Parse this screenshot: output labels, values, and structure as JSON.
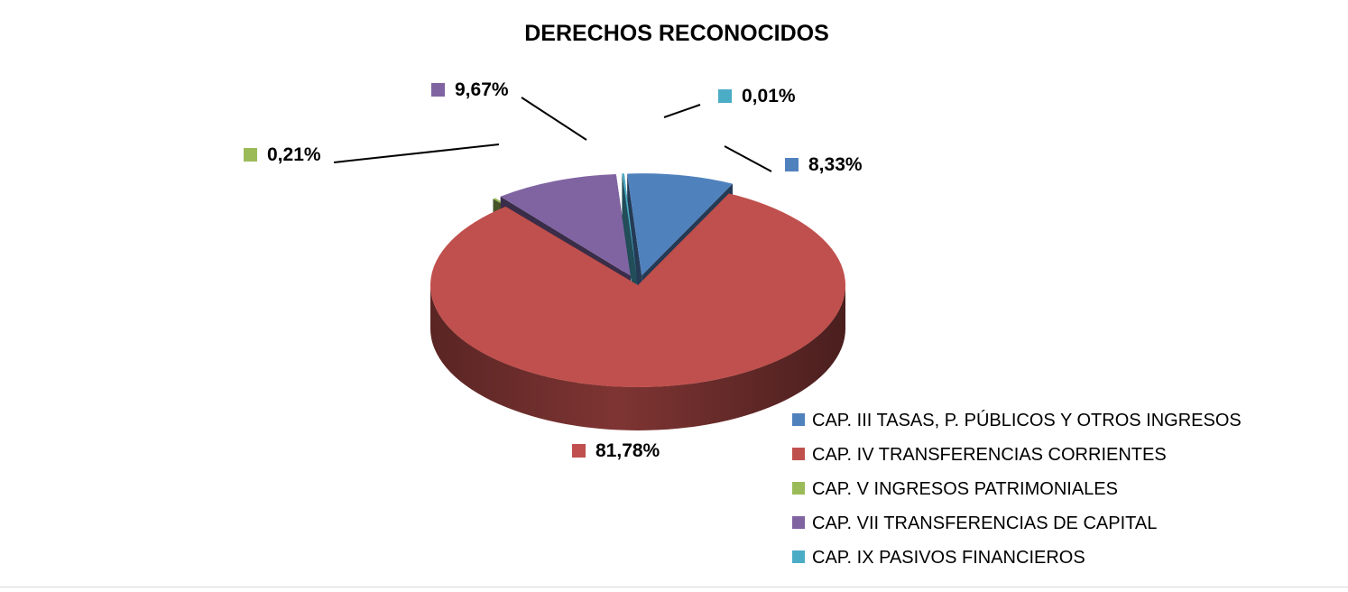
{
  "chart_data": {
    "type": "pie",
    "title": "DERECHOS RECONOCIDOS",
    "categories": [
      "CAP. III TASAS, P. PÚBLICOS Y OTROS INGRESOS",
      "CAP. IV TRANSFERENCIAS CORRIENTES",
      "CAP. V INGRESOS PATRIMONIALES",
      "CAP. VII TRANSFERENCIAS DE CAPITAL",
      "CAP. IX PASIVOS FINANCIEROS"
    ],
    "values": [
      8.33,
      81.78,
      0.21,
      9.67,
      0.01
    ],
    "data_labels": [
      "8,33%",
      "81,78%",
      "0,21%",
      "9,67%",
      "0,01%"
    ],
    "colors": [
      "#4f81bd",
      "#c0504d",
      "#9bbb59",
      "#8064a2",
      "#4bacc6"
    ],
    "exploded": true,
    "legend_position": "bottom-right",
    "three_d": true
  }
}
